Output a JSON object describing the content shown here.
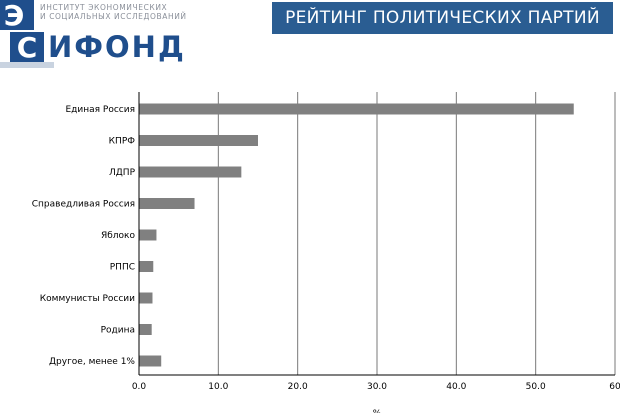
{
  "header": {
    "institute_line1": "ИНСТИТУТ ЭКОНОМИЧЕСКИХ",
    "institute_line2": "И СОЦИАЛЬНЫХ ИССЛЕДОВАНИЙ",
    "logo_e": "Э",
    "logo_s": "С",
    "logo_fond": "ИФОНД",
    "title": "РЕЙТИНГ ПОЛИТИЧЕСКИХ ПАРТИЙ"
  },
  "colors": {
    "brand": "#1f4e8c",
    "banner": "#2a5d92",
    "bar": "#808080"
  },
  "chart_data": {
    "type": "bar",
    "orientation": "horizontal",
    "categories": [
      "Единая Россия",
      "КПРФ",
      "ЛДПР",
      "Справедливая Россия",
      "Яблоко",
      "РППС",
      "Коммунисты России",
      "Родина",
      "Другое, менее 1%"
    ],
    "values": [
      54.8,
      15.0,
      12.9,
      7.0,
      2.2,
      1.8,
      1.7,
      1.6,
      2.8
    ],
    "xlabel": "%",
    "xlim": [
      0,
      60
    ],
    "xticks": [
      "0.0",
      "10.0",
      "20.0",
      "30.0",
      "40.0",
      "50.0",
      "60"
    ],
    "grid": "vertical"
  }
}
